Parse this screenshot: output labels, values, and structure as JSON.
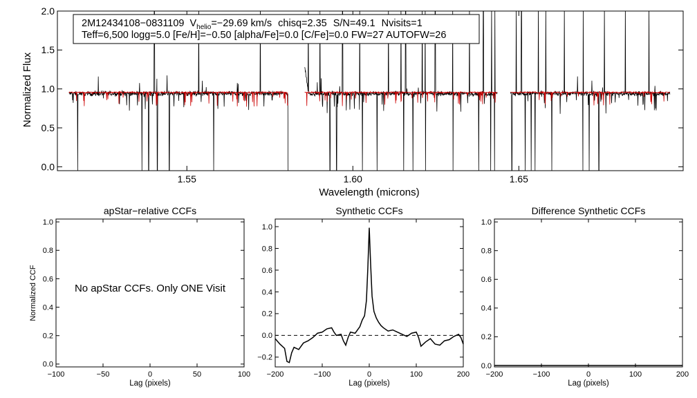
{
  "chart_data": [
    {
      "type": "line",
      "id": "spectrum",
      "title": "",
      "xlabel": "Wavelength (microns)",
      "ylabel": "Normalized Flux",
      "xlim": [
        1.511,
        1.6995
      ],
      "ylim": [
        -0.05,
        2.0
      ],
      "xticks": [
        {
          "value": 1.55,
          "label": "1.55"
        },
        {
          "value": 1.6,
          "label": "1.60"
        },
        {
          "value": 1.65,
          "label": "1.65"
        }
      ],
      "yticks": [
        {
          "value": 0.0,
          "label": "0.0"
        },
        {
          "value": 0.5,
          "label": "0.5"
        },
        {
          "value": 1.0,
          "label": "1.0"
        },
        {
          "value": 1.5,
          "label": "1.5"
        },
        {
          "value": 2.0,
          "label": "2.0"
        }
      ],
      "annotation": {
        "line1": {
          "star": "2M12434108−0831109",
          "v_symbol": "V",
          "v_subscript": "helio",
          "v_value": "=−29.69 km/s",
          "chisq": "chisq=2.35",
          "snr": "S/N=49.1",
          "nvisits": "Nvisits=1"
        },
        "line2": "Teff=6,500 logg=5.0 [Fe/H]=−0.50 [alpha/Fe]=0.0 [C/Fe]=0.0 FW=27 AUTOFW=26"
      },
      "chip_ranges": [
        [
          1.5145,
          1.5805
        ],
        [
          1.5855,
          1.6435
        ],
        [
          1.6475,
          1.6955
        ]
      ],
      "series": [
        {
          "name": "observed",
          "color": "#000000",
          "continuum": 0.94,
          "noise": 0.025
        },
        {
          "name": "synthetic",
          "color": "#cc0000",
          "continuum": 0.955,
          "noise": 0.008
        }
      ],
      "deep_lines": [
        1.5171,
        1.5365,
        1.5385,
        1.5411,
        1.5447,
        1.5536,
        1.5581,
        1.5805,
        1.5866,
        1.5931,
        1.5951,
        1.6029,
        1.6073,
        1.6153,
        1.6181,
        1.6219,
        1.6302,
        1.6379,
        1.6393,
        1.6415,
        1.6427,
        1.6479,
        1.6519,
        1.6537,
        1.6549,
        1.6599,
        1.6693,
        1.6712,
        1.6741
      ],
      "emission_lines": [
        1.5402,
        1.5536,
        1.5721,
        1.5866,
        1.5901,
        1.5969,
        1.6021,
        1.6107,
        1.6145,
        1.6159,
        1.6209,
        1.6218,
        1.6248,
        1.6301,
        1.6351,
        1.6393,
        1.6418,
        1.6428,
        1.6492,
        1.6508,
        1.6559,
        1.6581,
        1.6637,
        1.6694,
        1.6758,
        1.6821,
        1.6892
      ]
    },
    {
      "type": "line",
      "id": "apstar-ccf",
      "title": "apStar−relative CCFs",
      "xlabel": "Lag (pixels)",
      "ylabel": "Normalized CCF",
      "xlim": [
        -100,
        100
      ],
      "ylim": [
        -0.02,
        1.02
      ],
      "xticks": [
        {
          "value": -100,
          "label": "−100"
        },
        {
          "value": -50,
          "label": "−50"
        },
        {
          "value": 0,
          "label": "0"
        },
        {
          "value": 50,
          "label": "50"
        },
        {
          "value": 100,
          "label": "100"
        }
      ],
      "yticks": [
        {
          "value": 0.0,
          "label": "0.0"
        },
        {
          "value": 0.2,
          "label": "0.2"
        },
        {
          "value": 0.4,
          "label": "0.4"
        },
        {
          "value": 0.6,
          "label": "0.6"
        },
        {
          "value": 0.8,
          "label": "0.8"
        },
        {
          "value": 1.0,
          "label": "1.0"
        }
      ],
      "message": "No apStar CCFs.  Only ONE Visit"
    },
    {
      "type": "line",
      "id": "synthetic-ccf",
      "title": "Synthetic CCFs",
      "xlabel": "Lag (pixels)",
      "ylabel": "",
      "xlim": [
        -200,
        200
      ],
      "ylim": [
        -0.29,
        1.07
      ],
      "xticks": [
        {
          "value": -200,
          "label": "−200"
        },
        {
          "value": -100,
          "label": "−100"
        },
        {
          "value": 0,
          "label": "0"
        },
        {
          "value": 100,
          "label": "100"
        },
        {
          "value": 200,
          "label": "200"
        }
      ],
      "yticks": [
        {
          "value": -0.2,
          "label": "−0.2"
        },
        {
          "value": 0.0,
          "label": "0.0"
        },
        {
          "value": 0.2,
          "label": "0.2"
        },
        {
          "value": 0.4,
          "label": "0.4"
        },
        {
          "value": 0.6,
          "label": "0.6"
        },
        {
          "value": 0.8,
          "label": "0.8"
        },
        {
          "value": 1.0,
          "label": "1.0"
        }
      ],
      "reference_line": 0.0,
      "x": [
        -200,
        -190,
        -180,
        -175,
        -170,
        -165,
        -160,
        -150,
        -140,
        -130,
        -120,
        -110,
        -100,
        -90,
        -80,
        -75,
        -70,
        -60,
        -55,
        -50,
        -45,
        -40,
        -30,
        -20,
        -15,
        -10,
        -6,
        -3,
        0,
        3,
        6,
        10,
        15,
        20,
        25,
        30,
        40,
        50,
        60,
        70,
        80,
        90,
        100,
        105,
        110,
        120,
        130,
        140,
        150,
        160,
        170,
        180,
        190,
        195,
        200
      ],
      "values": [
        -0.03,
        -0.08,
        -0.12,
        -0.24,
        -0.25,
        -0.16,
        -0.11,
        -0.13,
        -0.07,
        -0.05,
        -0.02,
        0.02,
        0.03,
        0.06,
        0.07,
        0.03,
        0.0,
        0.01,
        -0.05,
        -0.09,
        -0.02,
        0.03,
        0.02,
        0.08,
        0.14,
        0.18,
        0.32,
        0.62,
        0.99,
        0.65,
        0.36,
        0.22,
        0.16,
        0.12,
        0.09,
        0.07,
        0.04,
        0.05,
        0.03,
        0.01,
        -0.01,
        0.02,
        0.03,
        -0.02,
        -0.1,
        -0.06,
        -0.03,
        -0.08,
        -0.09,
        -0.05,
        -0.04,
        -0.01,
        0.01,
        -0.02,
        -0.08
      ]
    },
    {
      "type": "line",
      "id": "difference-ccf",
      "title": "Difference Synthetic CCFs",
      "xlabel": "Lag (pixels)",
      "ylabel": "",
      "xlim": [
        -200,
        200
      ],
      "ylim": [
        -0.01,
        1.02
      ],
      "xticks": [
        {
          "value": -200,
          "label": "−200"
        },
        {
          "value": -100,
          "label": "−100"
        },
        {
          "value": 0,
          "label": "0"
        },
        {
          "value": 100,
          "label": "100"
        },
        {
          "value": 200,
          "label": "200"
        }
      ],
      "yticks": [
        {
          "value": 0.0,
          "label": "0.0"
        },
        {
          "value": 0.2,
          "label": "0.2"
        },
        {
          "value": 0.4,
          "label": "0.4"
        },
        {
          "value": 0.6,
          "label": "0.6"
        },
        {
          "value": 0.8,
          "label": "0.8"
        },
        {
          "value": 1.0,
          "label": "1.0"
        }
      ],
      "constant_value": 0.0
    }
  ]
}
